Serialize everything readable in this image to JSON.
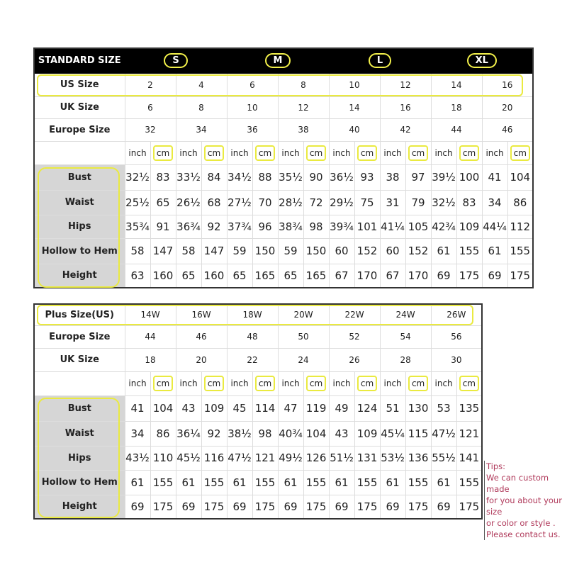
{
  "standard": {
    "title": "STANDARD SIZE",
    "groups": [
      "S",
      "M",
      "L",
      "XL"
    ],
    "us_label": "US Size",
    "us": [
      "2",
      "4",
      "6",
      "8",
      "10",
      "12",
      "14",
      "16"
    ],
    "uk_label": "UK Size",
    "uk": [
      "6",
      "8",
      "10",
      "12",
      "14",
      "16",
      "18",
      "20"
    ],
    "eu_label": "Europe Size",
    "eu": [
      "32",
      "34",
      "36",
      "38",
      "40",
      "42",
      "44",
      "46"
    ],
    "unit_inch": "inch",
    "unit_cm": "cm",
    "rows": [
      {
        "label": "Bust",
        "values": [
          "32½",
          "83",
          "33½",
          "84",
          "34½",
          "88",
          "35½",
          "90",
          "36½",
          "93",
          "38",
          "97",
          "39½",
          "100",
          "41",
          "104"
        ]
      },
      {
        "label": "Waist",
        "values": [
          "25½",
          "65",
          "26½",
          "68",
          "27½",
          "70",
          "28½",
          "72",
          "29½",
          "75",
          "31",
          "79",
          "32½",
          "83",
          "34",
          "86"
        ]
      },
      {
        "label": "Hips",
        "values": [
          "35¾",
          "91",
          "36¾",
          "92",
          "37¾",
          "96",
          "38¾",
          "98",
          "39¾",
          "101",
          "41¼",
          "105",
          "42¾",
          "109",
          "44¼",
          "112"
        ]
      },
      {
        "label": "Hollow to Hem",
        "values": [
          "58",
          "147",
          "58",
          "147",
          "59",
          "150",
          "59",
          "150",
          "60",
          "152",
          "60",
          "152",
          "61",
          "155",
          "61",
          "155"
        ]
      },
      {
        "label": "Height",
        "values": [
          "63",
          "160",
          "65",
          "160",
          "65",
          "165",
          "65",
          "165",
          "67",
          "170",
          "67",
          "170",
          "69",
          "175",
          "69",
          "175"
        ]
      }
    ]
  },
  "plus": {
    "plus_label": "Plus Size(US)",
    "plus": [
      "14W",
      "16W",
      "18W",
      "20W",
      "22W",
      "24W",
      "26W"
    ],
    "eu_label": "Europe Size",
    "eu": [
      "44",
      "46",
      "48",
      "50",
      "52",
      "54",
      "56"
    ],
    "uk_label": "UK Size",
    "uk": [
      "18",
      "20",
      "22",
      "24",
      "26",
      "28",
      "30"
    ],
    "unit_inch": "inch",
    "unit_cm": "cm",
    "rows": [
      {
        "label": "Bust",
        "values": [
          "41",
          "104",
          "43",
          "109",
          "45",
          "114",
          "47",
          "119",
          "49",
          "124",
          "51",
          "130",
          "53",
          "135"
        ]
      },
      {
        "label": "Waist",
        "values": [
          "34",
          "86",
          "36¼",
          "92",
          "38½",
          "98",
          "40¾",
          "104",
          "43",
          "109",
          "45¼",
          "115",
          "47½",
          "121"
        ]
      },
      {
        "label": "Hips",
        "values": [
          "43½",
          "110",
          "45½",
          "116",
          "47½",
          "121",
          "49½",
          "126",
          "51½",
          "131",
          "53½",
          "136",
          "55½",
          "141"
        ]
      },
      {
        "label": "Hollow to Hem",
        "values": [
          "61",
          "155",
          "61",
          "155",
          "61",
          "155",
          "61",
          "155",
          "61",
          "155",
          "61",
          "155",
          "61",
          "155"
        ]
      },
      {
        "label": "Height",
        "values": [
          "69",
          "175",
          "69",
          "175",
          "69",
          "175",
          "69",
          "175",
          "69",
          "175",
          "69",
          "175",
          "69",
          "175"
        ]
      }
    ]
  },
  "tips": {
    "title": "Tips:",
    "lines": [
      "We can custom made",
      "for you about your size",
      "or color or style .",
      "Please contact us."
    ]
  },
  "colors": {
    "highlight": "#eaea40",
    "header_bg": "#000000",
    "label_bg": "#d6d6d6",
    "tips_text": "#b03a5b"
  }
}
